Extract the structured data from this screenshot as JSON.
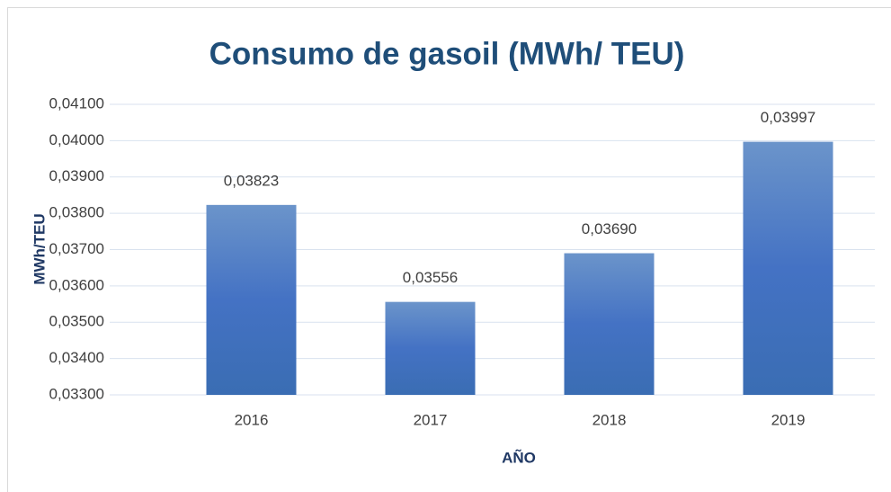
{
  "chart_data": {
    "type": "bar",
    "title": "Consumo de gasoil (MWh/ TEU)",
    "x_label": "AÑO",
    "y_label": "MWh/TEU",
    "categories": [
      "2016",
      "2017",
      "2018",
      "2019"
    ],
    "values": [
      0.03823,
      0.03556,
      0.0369,
      0.03997
    ],
    "value_labels": [
      "0,03823",
      "0,03556",
      "0,03690",
      "0,03997"
    ],
    "color": "#4472c4",
    "ylim": [
      0.033,
      0.041
    ],
    "yticks": [
      {
        "value": 0.033,
        "label": "0,03300"
      },
      {
        "value": 0.034,
        "label": "0,03400"
      },
      {
        "value": 0.035,
        "label": "0,03500"
      },
      {
        "value": 0.036,
        "label": "0,03600"
      },
      {
        "value": 0.037,
        "label": "0,03700"
      },
      {
        "value": 0.038,
        "label": "0,03800"
      },
      {
        "value": 0.039,
        "label": "0,03900"
      },
      {
        "value": 0.04,
        "label": "0,04000"
      },
      {
        "value": 0.041,
        "label": "0,04100"
      }
    ],
    "grid": true
  }
}
